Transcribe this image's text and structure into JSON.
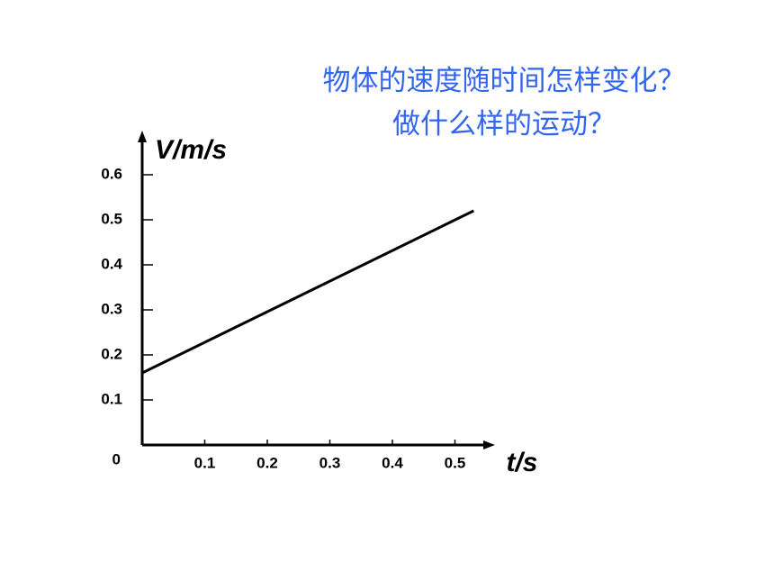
{
  "chart_data": {
    "type": "line",
    "title_lines": [
      "物体的速度随时间怎样变化？",
      "做什么样的运动？"
    ],
    "x_label": "t/s",
    "y_label": "V/m/s",
    "x": [
      0,
      0.53
    ],
    "series": [
      {
        "color": "#000000",
        "values": [
          0.16,
          0.52
        ]
      }
    ],
    "xlim": [
      0,
      0.56
    ],
    "ylim": [
      0,
      0.69
    ],
    "xticks": [
      0.1,
      0.2,
      0.3,
      0.4,
      0.5
    ],
    "yticks": [
      0,
      0.1,
      0.2,
      0.3,
      0.4,
      0.5,
      0.6
    ],
    "title_color": "#3366ee"
  }
}
